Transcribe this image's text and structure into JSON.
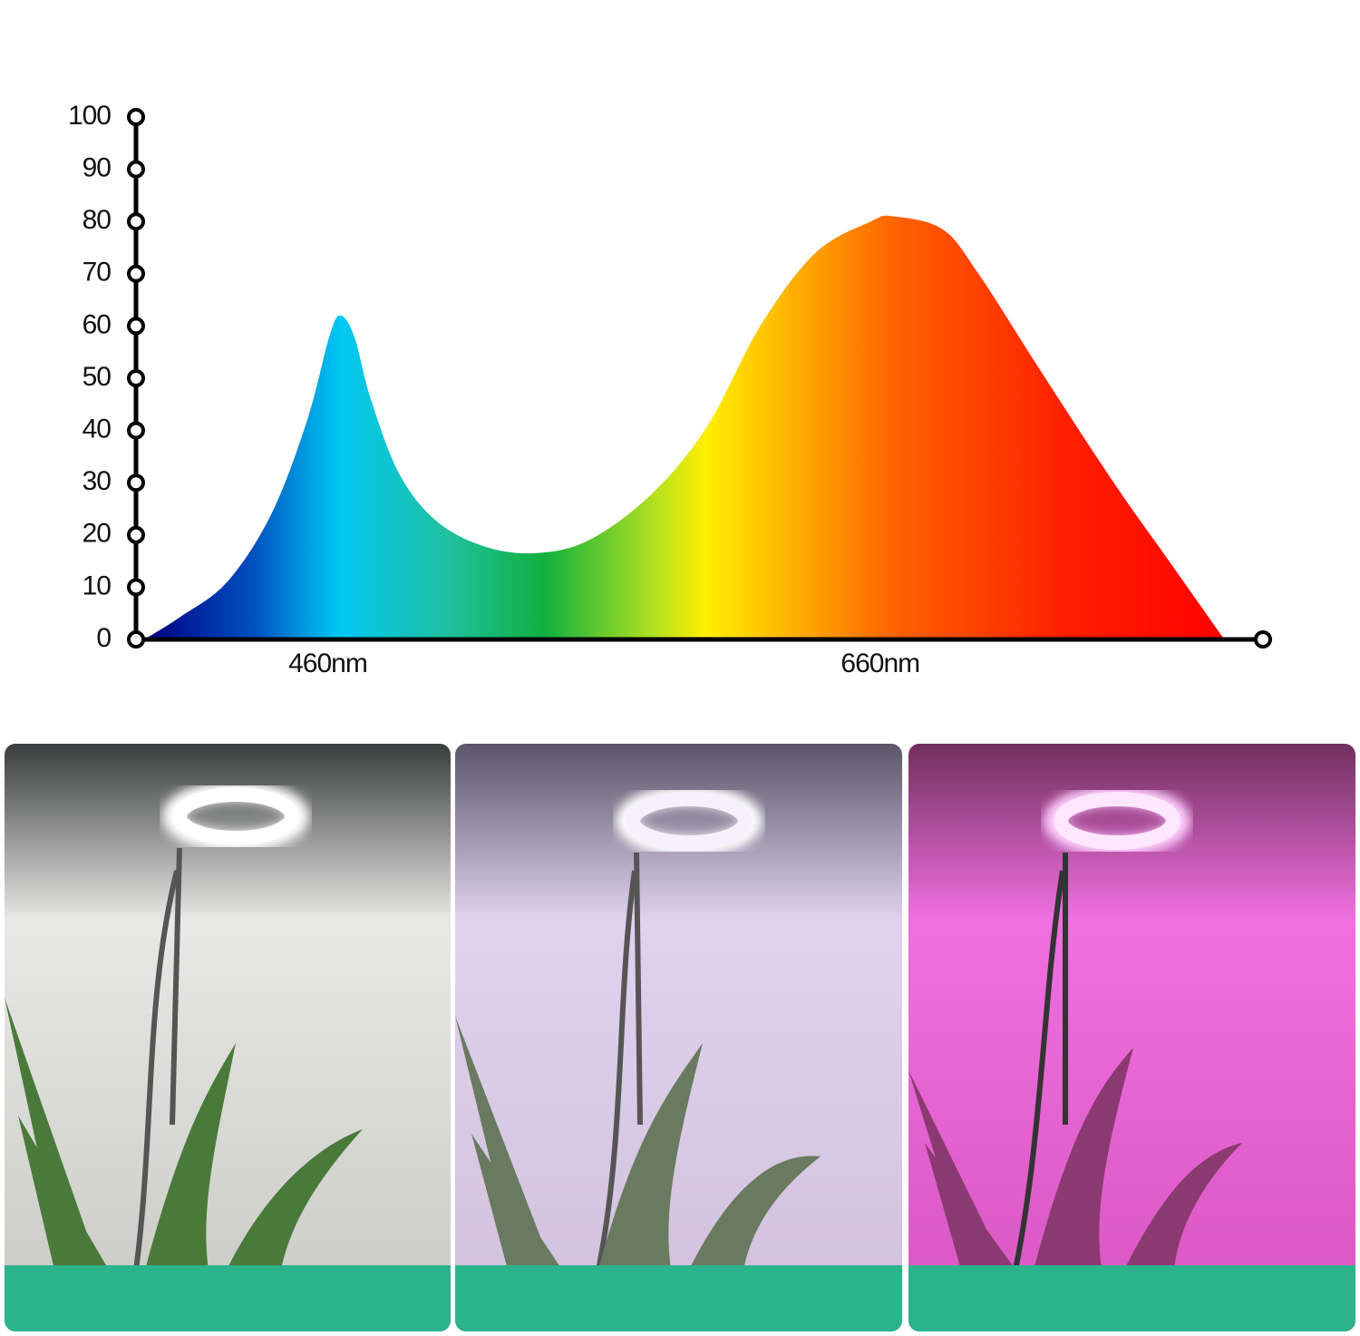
{
  "chart_data": {
    "type": "area",
    "x": [
      389,
      402,
      419,
      435,
      448,
      456,
      460,
      465,
      471,
      481,
      494,
      511,
      530,
      550,
      573,
      593,
      612,
      632,
      652,
      660,
      678,
      691,
      714,
      740,
      760,
      780
    ],
    "values": [
      0,
      4.3,
      11,
      24,
      42,
      58,
      62,
      58,
      46,
      32,
      23,
      18,
      16.5,
      19,
      28,
      41,
      60,
      74,
      80,
      81,
      78.5,
      70,
      51,
      30,
      15,
      0
    ],
    "xlim": [
      386,
      794
    ],
    "xticks": [
      {
        "value": 460,
        "label": "460nm"
      },
      {
        "value": 660,
        "label": "660nm"
      }
    ],
    "ylim": [
      0,
      100
    ],
    "yticks": [
      0,
      10,
      20,
      30,
      40,
      50,
      60,
      70,
      80,
      90,
      100
    ]
  }
}
